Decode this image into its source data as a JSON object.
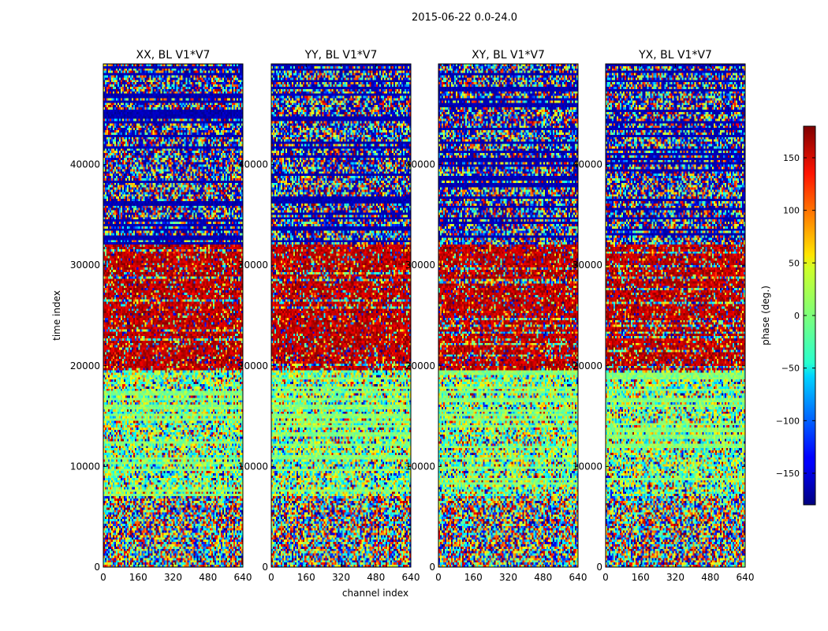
{
  "chart_data": {
    "type": "heatmap",
    "title": "2015-06-22 0.0-24.0",
    "xlabel": "channel index",
    "ylabel": "time index",
    "xlim": [
      0,
      640
    ],
    "ylim": [
      0,
      50000
    ],
    "x_ticks": [
      "0",
      "160",
      "320",
      "480",
      "640"
    ],
    "y_ticks": [
      "0",
      "10000",
      "20000",
      "30000",
      "40000"
    ],
    "x_tick_values": [
      0,
      160,
      320,
      480,
      640
    ],
    "y_tick_values": [
      0,
      10000,
      20000,
      30000,
      40000
    ],
    "panels": [
      {
        "name": "XX, BL V1*V7"
      },
      {
        "name": "YY, BL V1*V7"
      },
      {
        "name": "XY, BL V1*V7"
      },
      {
        "name": "YX, BL V1*V7"
      }
    ],
    "colorbar": {
      "label": "phase (deg.)",
      "range": [
        -180,
        180
      ],
      "ticks": [
        "150",
        "100",
        "50",
        "0",
        "−50",
        "−100",
        "−150"
      ],
      "tick_values": [
        150,
        100,
        50,
        0,
        -50,
        -100,
        -150
      ],
      "colormap": "jet"
    },
    "time_regions": [
      {
        "from": 0,
        "to": 7000,
        "pattern": "random phase noise"
      },
      {
        "from": 7000,
        "to": 19500,
        "pattern": "mostly cyan/green striped noise"
      },
      {
        "from": 19500,
        "to": 32000,
        "pattern": "mostly dark red (about +180 deg)"
      },
      {
        "from": 32000,
        "to": 50000,
        "pattern": "dark blue bands (about -180 deg) mixed with noise"
      }
    ]
  }
}
